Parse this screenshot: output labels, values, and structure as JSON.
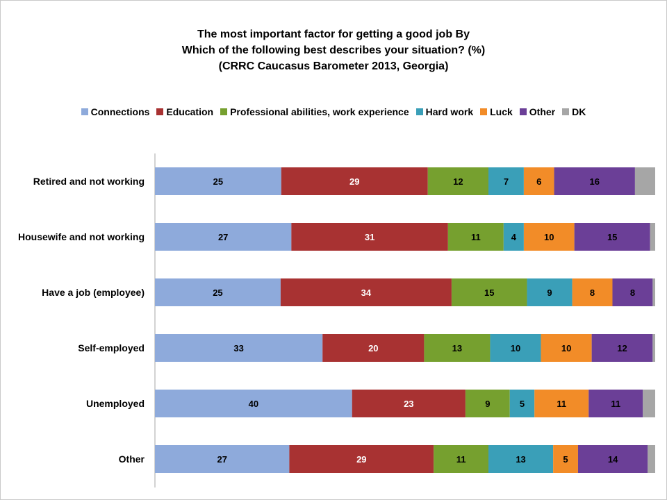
{
  "chart_data": {
    "type": "bar",
    "orientation": "horizontal",
    "stacked": true,
    "title_lines": [
      "The most important factor for getting a good job  By",
      "Which of the following best describes your situation? (%)",
      "(CRRC Caucasus Barometer 2013, Georgia)"
    ],
    "xlim": [
      0,
      100
    ],
    "grid": false,
    "legend_position": "top",
    "categories": [
      "Retired and not working",
      "Housewife and not working",
      "Have a job (employee)",
      "Self-employed",
      "Unemployed",
      "Other"
    ],
    "series": [
      {
        "name": "Connections",
        "color": "#8eaadb",
        "label_color": "#000000",
        "values": [
          25,
          27,
          25,
          33,
          40,
          27
        ]
      },
      {
        "name": "Education",
        "color": "#a83232",
        "label_color": "#ffffff",
        "values": [
          29,
          31,
          34,
          20,
          23,
          29
        ]
      },
      {
        "name": "Professional abilities, work experience",
        "color": "#76a02f",
        "label_color": "#000000",
        "values": [
          12,
          11,
          15,
          13,
          9,
          11
        ]
      },
      {
        "name": "Hard work",
        "color": "#3a9fb8",
        "label_color": "#000000",
        "values": [
          7,
          4,
          9,
          10,
          5,
          13
        ]
      },
      {
        "name": "Luck",
        "color": "#f28c28",
        "label_color": "#000000",
        "values": [
          6,
          10,
          8,
          10,
          11,
          5
        ]
      },
      {
        "name": "Other",
        "color": "#6b3f97",
        "label_color": "#000000",
        "values": [
          16,
          15,
          8,
          12,
          11,
          14
        ]
      },
      {
        "name": "DK",
        "color": "#a6a6a6",
        "label_color": "#000000",
        "values": [
          4,
          1,
          0.5,
          0.5,
          2.5,
          1.5
        ]
      }
    ],
    "shown_labels": [
      [
        25,
        29,
        12,
        7,
        6,
        16,
        null
      ],
      [
        27,
        31,
        11,
        4,
        10,
        15,
        null
      ],
      [
        25,
        34,
        15,
        9,
        8,
        8,
        null
      ],
      [
        33,
        20,
        13,
        10,
        10,
        12,
        null
      ],
      [
        40,
        23,
        9,
        5,
        11,
        11,
        null
      ],
      [
        27,
        29,
        11,
        13,
        5,
        14,
        null
      ]
    ]
  }
}
